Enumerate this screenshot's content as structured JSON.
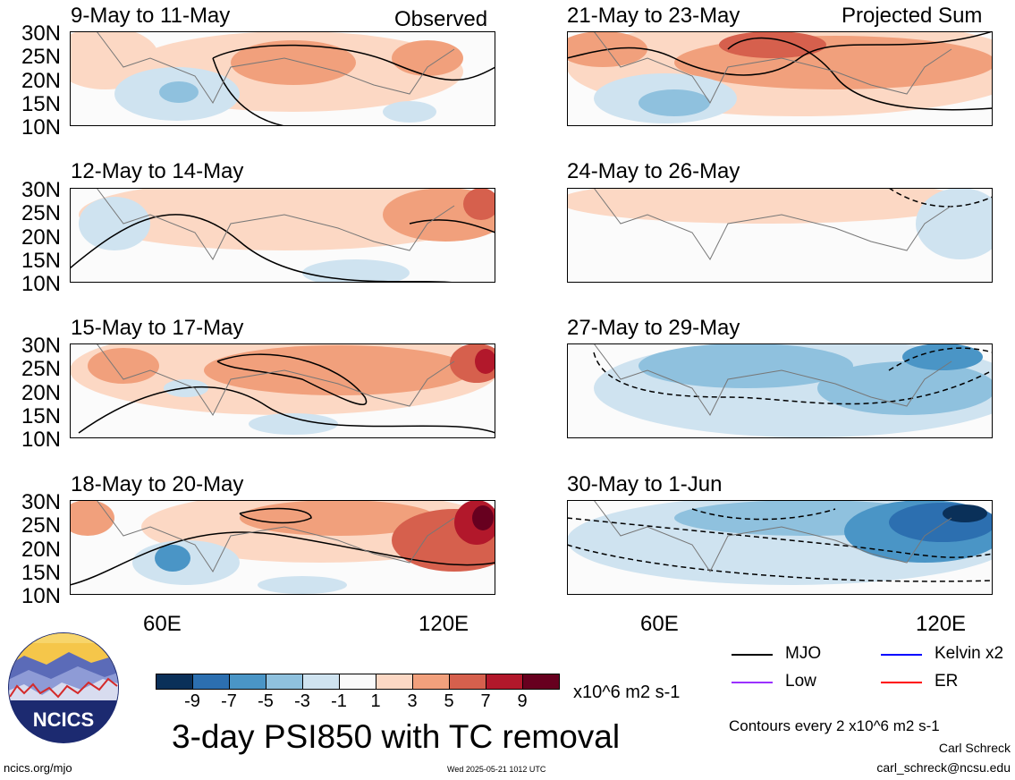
{
  "panels_left": [
    {
      "title": "9-May to 11-May"
    },
    {
      "title": "12-May to 14-May"
    },
    {
      "title": "15-May to 17-May"
    },
    {
      "title": "18-May to 20-May"
    }
  ],
  "panels_right": [
    {
      "title": "21-May to 23-May"
    },
    {
      "title": "24-May to 26-May"
    },
    {
      "title": "27-May to 29-May"
    },
    {
      "title": "30-May to 1-Jun"
    }
  ],
  "labels": {
    "observed": "Observed",
    "projected": "Projected Sum"
  },
  "lat_labels": [
    "30N",
    "25N",
    "20N",
    "15N",
    "10N"
  ],
  "lon_labels": [
    "60E",
    "120E"
  ],
  "colorbar": {
    "labels": [
      "-9",
      "-7",
      "-5",
      "-3",
      "-1",
      "1",
      "3",
      "5",
      "7",
      "9"
    ],
    "colors": [
      "#0a3059",
      "#2c6fb0",
      "#4a95c6",
      "#8fc1de",
      "#cfe3f0",
      "#fafafa",
      "#fcd8c4",
      "#f1a07c",
      "#d6604d",
      "#b2182b",
      "#67001f"
    ],
    "units": "x10^6 m2 s-1"
  },
  "main_title": "3-day PSI850 with TC removal",
  "legend": [
    {
      "label": "MJO",
      "color": "#000000"
    },
    {
      "label": "Kelvin x2",
      "color": "#0000ff"
    },
    {
      "label": "Low",
      "color": "#9b30ff"
    },
    {
      "label": "ER",
      "color": "#ff0000"
    }
  ],
  "contours_note": "Contours every 2 x10^6 m2 s-1",
  "author": "Carl Schreck",
  "email": "carl_schreck@ncsu.edu",
  "website": "ncics.org/mjo",
  "timestamp": "Wed 2025-05-21 1012 UTC",
  "logo_text": "NCICS"
}
